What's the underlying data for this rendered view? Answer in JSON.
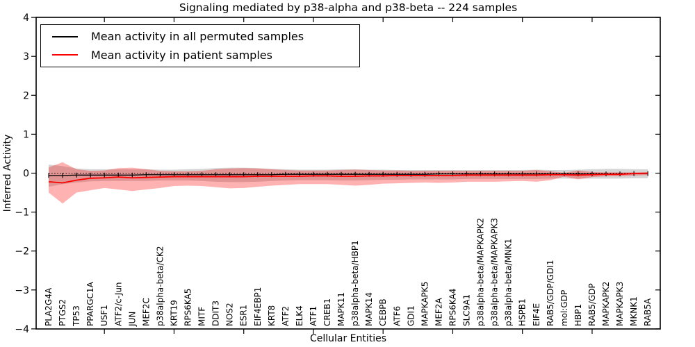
{
  "chart_data": {
    "type": "line",
    "title": "Signaling mediated by p38-alpha and p38-beta -- 224 samples",
    "xlabel": "Cellular Entities",
    "ylabel": "Inferred Activity",
    "ylim": [
      -4,
      4
    ],
    "yticks": [
      4,
      3,
      2,
      1,
      0,
      -1,
      -2,
      -3,
      -4
    ],
    "grid": false,
    "legend_position": "upper left",
    "zero_line": 0,
    "categories": [
      "PLA2G4A",
      "PTGS2",
      "TP53",
      "PPARGC1A",
      "USF1",
      "ATF2/c-Jun",
      "JUN",
      "MEF2C",
      "p38alpha-beta/CK2",
      "KRT19",
      "RPS6KA5",
      "MITF",
      "DDIT3",
      "NOS2",
      "ESR1",
      "EIF4EBP1",
      "KRT8",
      "ATF2",
      "ELK4",
      "ATF1",
      "CREB1",
      "MAPK11",
      "p38alpha-beta/HBP1",
      "MAPK14",
      "CEBPB",
      "ATF6",
      "GDI1",
      "MAPKAPK5",
      "MEF2A",
      "RPS6KA4",
      "SLC9A1",
      "p38alpha-beta/MAPKAPK2",
      "p38alpha-beta/MAPKAPK3",
      "p38alpha-beta/MNK1",
      "HSPB1",
      "EIF4E",
      "RAB5/GDP/GDI1",
      "mol:GDP",
      "HBP1",
      "RAB5/GDP",
      "MAPKAPK2",
      "MAPKAPK3",
      "MKNK1",
      "RAB5A"
    ],
    "series": [
      {
        "name": "Mean activity in all permuted samples",
        "color": "#000000",
        "marker": "vline",
        "band_color": "#888888",
        "band_opacity": 0.35,
        "values": [
          -0.06,
          -0.06,
          -0.05,
          -0.05,
          -0.05,
          -0.05,
          -0.05,
          -0.04,
          -0.04,
          -0.04,
          -0.04,
          -0.04,
          -0.04,
          -0.04,
          -0.04,
          -0.04,
          -0.04,
          -0.03,
          -0.03,
          -0.03,
          -0.03,
          -0.03,
          -0.03,
          -0.03,
          -0.03,
          -0.03,
          -0.03,
          -0.03,
          -0.02,
          -0.02,
          -0.02,
          -0.02,
          -0.02,
          -0.02,
          -0.02,
          -0.02,
          -0.02,
          -0.02,
          -0.02,
          -0.02,
          -0.02,
          -0.02,
          -0.01,
          -0.01
        ],
        "band_upper": [
          0.22,
          0.18,
          0.12,
          0.1,
          0.1,
          0.1,
          0.1,
          0.1,
          0.09,
          0.09,
          0.1,
          0.11,
          0.13,
          0.14,
          0.14,
          0.13,
          0.11,
          0.1,
          0.09,
          0.09,
          0.09,
          0.1,
          0.1,
          0.09,
          0.09,
          0.08,
          0.08,
          0.08,
          0.08,
          0.08,
          0.08,
          0.08,
          0.08,
          0.08,
          0.08,
          0.09,
          0.08,
          0.08,
          0.09,
          0.1,
          0.11,
          0.11,
          0.1,
          0.1
        ],
        "band_lower": [
          -0.35,
          -0.28,
          -0.24,
          -0.21,
          -0.2,
          -0.2,
          -0.2,
          -0.2,
          -0.19,
          -0.19,
          -0.19,
          -0.2,
          -0.22,
          -0.23,
          -0.23,
          -0.22,
          -0.2,
          -0.19,
          -0.18,
          -0.18,
          -0.18,
          -0.19,
          -0.19,
          -0.18,
          -0.17,
          -0.17,
          -0.16,
          -0.16,
          -0.16,
          -0.16,
          -0.15,
          -0.15,
          -0.15,
          -0.15,
          -0.15,
          -0.15,
          -0.14,
          -0.14,
          -0.14,
          -0.14,
          -0.14,
          -0.14,
          -0.13,
          -0.13
        ]
      },
      {
        "name": "Mean activity in patient samples",
        "color": "#ff0000",
        "marker": null,
        "band_color": "#ff0000",
        "band_opacity": 0.3,
        "values": [
          -0.22,
          -0.25,
          -0.18,
          -0.13,
          -0.12,
          -0.1,
          -0.12,
          -0.11,
          -0.1,
          -0.09,
          -0.09,
          -0.09,
          -0.09,
          -0.09,
          -0.09,
          -0.08,
          -0.08,
          -0.08,
          -0.08,
          -0.07,
          -0.07,
          -0.08,
          -0.08,
          -0.07,
          -0.07,
          -0.06,
          -0.06,
          -0.06,
          -0.06,
          -0.06,
          -0.05,
          -0.05,
          -0.05,
          -0.05,
          -0.05,
          -0.05,
          -0.04,
          -0.04,
          -0.05,
          -0.04,
          -0.03,
          -0.03,
          -0.01,
          0.0
        ],
        "band_upper": [
          0.15,
          0.28,
          0.1,
          0.06,
          0.07,
          0.13,
          0.14,
          0.1,
          0.06,
          0.05,
          0.05,
          0.06,
          0.1,
          0.12,
          0.13,
          0.12,
          0.1,
          0.08,
          0.07,
          0.07,
          0.07,
          0.08,
          0.09,
          0.08,
          0.07,
          0.07,
          0.06,
          0.06,
          0.06,
          0.06,
          0.06,
          0.06,
          0.06,
          0.06,
          0.06,
          0.08,
          0.05,
          0.01,
          0.07,
          0.03,
          0.02,
          0.02,
          0.02,
          0.02
        ],
        "band_lower": [
          -0.5,
          -0.78,
          -0.5,
          -0.44,
          -0.38,
          -0.42,
          -0.46,
          -0.42,
          -0.38,
          -0.33,
          -0.32,
          -0.33,
          -0.36,
          -0.39,
          -0.38,
          -0.35,
          -0.32,
          -0.3,
          -0.28,
          -0.28,
          -0.28,
          -0.3,
          -0.32,
          -0.3,
          -0.27,
          -0.26,
          -0.25,
          -0.24,
          -0.25,
          -0.24,
          -0.22,
          -0.22,
          -0.22,
          -0.21,
          -0.2,
          -0.22,
          -0.18,
          -0.09,
          -0.16,
          -0.1,
          -0.08,
          -0.08,
          -0.06,
          -0.05
        ]
      }
    ]
  }
}
